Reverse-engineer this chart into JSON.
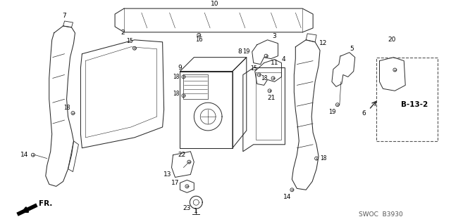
{
  "bg_color": "#ffffff",
  "fig_width": 6.4,
  "fig_height": 3.19,
  "dpi": 100,
  "watermark": "SWOC  B3930",
  "ref_label": "B-13-2",
  "fr_label": "FR."
}
